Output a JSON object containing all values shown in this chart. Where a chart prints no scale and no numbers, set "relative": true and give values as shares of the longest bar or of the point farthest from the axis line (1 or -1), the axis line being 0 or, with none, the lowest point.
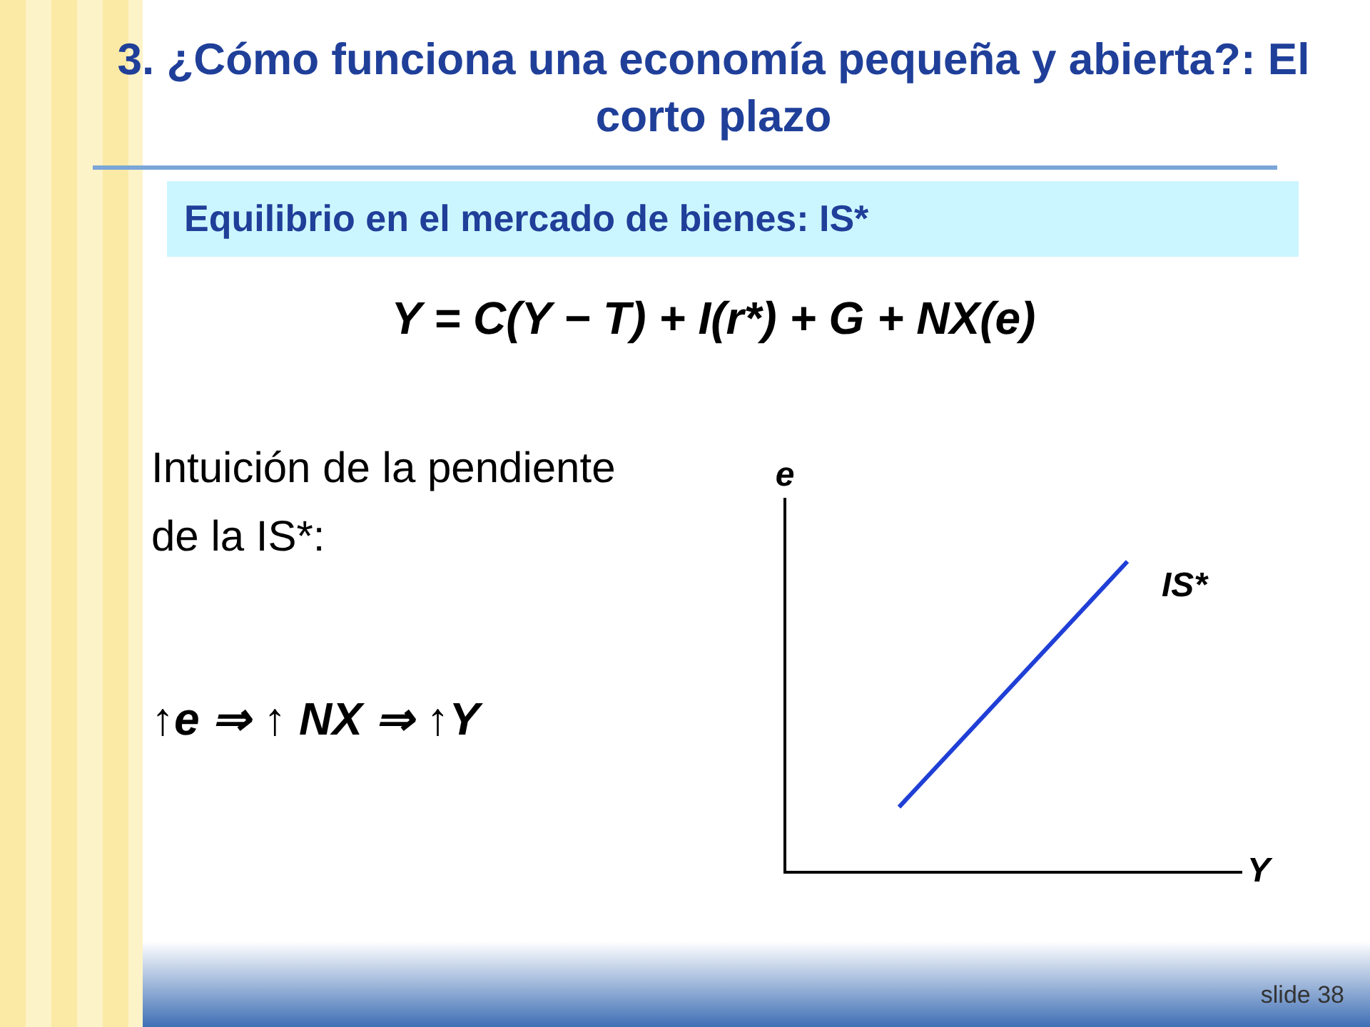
{
  "chart_data": {
    "type": "line",
    "title": "3. ¿Cómo funciona una economía pequeña y abierta?: El corto plazo",
    "subtitle": "Equilibrio en el mercado de bienes: IS*",
    "xlabel": "Y",
    "ylabel": "e",
    "relative": true,
    "marker": "none",
    "line_style": "solid",
    "categories": [
      null,
      null
    ],
    "series": [
      {
        "name": "IS*",
        "color": "#1f3fd6",
        "values": [
          0.21,
          1
        ]
      }
    ],
    "annotations": [
      "Y = C(Y − T) + I(r*) + G + NX(e)",
      "Intuición de la pendiente de la IS*:",
      "↑e ⇒ ↑ NX ⇒ ↑Y",
      "slide 38"
    ]
  }
}
